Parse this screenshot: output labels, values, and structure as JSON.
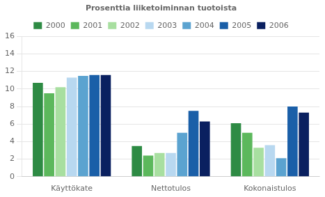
{
  "chart_data": {
    "type": "bar",
    "title": "Prosenttia liiketoiminnan tuotoista",
    "categories": [
      "Käyttökate",
      "Nettotulos",
      "Kokonaistulos"
    ],
    "series": [
      {
        "name": "2000",
        "color": "#2e8b44",
        "values": [
          10.7,
          3.5,
          6.1
        ]
      },
      {
        "name": "2001",
        "color": "#5cb85c",
        "values": [
          9.5,
          2.4,
          5.0
        ]
      },
      {
        "name": "2002",
        "color": "#a8dfa0",
        "values": [
          10.2,
          2.7,
          3.3
        ]
      },
      {
        "name": "2003",
        "color": "#b8d8f0",
        "values": [
          11.3,
          2.7,
          3.6
        ]
      },
      {
        "name": "2004",
        "color": "#5ba3d0",
        "values": [
          11.5,
          5.0,
          2.1
        ]
      },
      {
        "name": "2005",
        "color": "#1a5fa8",
        "values": [
          11.6,
          7.5,
          8.0
        ]
      },
      {
        "name": "2006",
        "color": "#0a2060",
        "values": [
          11.6,
          6.3,
          7.3
        ]
      }
    ],
    "ylim": [
      0,
      16
    ],
    "yticks": [
      0,
      2,
      4,
      6,
      8,
      10,
      12,
      14,
      16
    ],
    "grid": true,
    "legend": "top"
  }
}
